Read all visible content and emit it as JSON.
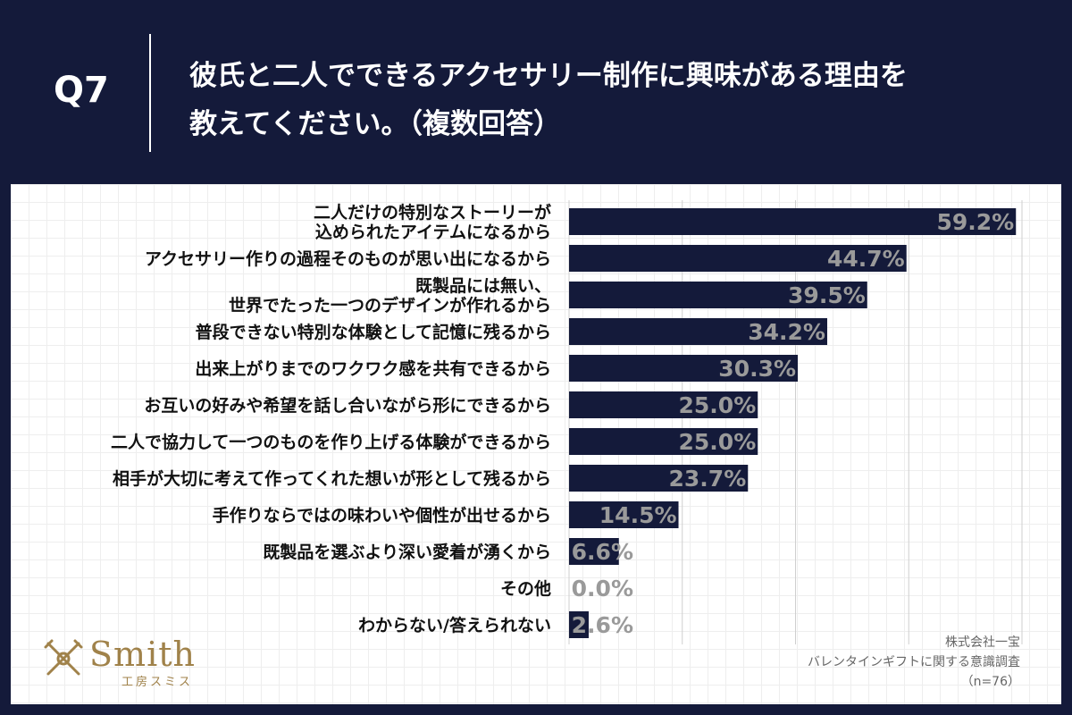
{
  "header": {
    "question_number": "Q7",
    "title_line1": "彼氏と二人でできるアクセサリー制作に興味がある理由を",
    "title_line2": "教えてください。（複数回答）"
  },
  "chart_data": {
    "type": "bar",
    "orientation": "horizontal",
    "title": "彼氏と二人でできるアクセサリー制作に興味がある理由を教えてください。（複数回答）",
    "categories": [
      [
        "二人だけの特別なストーリーが",
        "込められたアイテムになるから"
      ],
      [
        "アクセサリー作りの過程そのものが思い出になるから"
      ],
      [
        "既製品には無い、",
        "世界でたった一つのデザインが作れるから"
      ],
      [
        "普段できない特別な体験として記憶に残るから"
      ],
      [
        "出来上がりまでのワクワク感を共有できるから"
      ],
      [
        "お互いの好みや希望を話し合いながら形にできるから"
      ],
      [
        "二人で協力して一つのものを作り上げる体験ができるから"
      ],
      [
        "相手が大切に考えて作ってくれた想いが形として残るから"
      ],
      [
        "手作りならではの味わいや個性が出せるから"
      ],
      [
        "既製品を選ぶより深い愛着が湧くから"
      ],
      [
        "その他"
      ],
      [
        "わからない/答えられない"
      ]
    ],
    "values": [
      59.2,
      44.7,
      39.5,
      34.2,
      30.3,
      25.0,
      25.0,
      23.7,
      14.5,
      6.6,
      0.0,
      2.6
    ],
    "value_labels": [
      "59.2%",
      "44.7%",
      "39.5%",
      "34.2%",
      "30.3%",
      "25.0%",
      "25.0%",
      "23.7%",
      "14.5%",
      "6.6%",
      "0.0%",
      "2.6%"
    ],
    "xlim": [
      0,
      60
    ],
    "grid": true,
    "bar_color": "#141a3a",
    "label_color": "#9a9a9a"
  },
  "logo": {
    "name": "Smith",
    "subtitle": "工房スミス"
  },
  "source": {
    "company": "株式会社一宝",
    "survey": "バレンタインギフトに関する意識調査",
    "sample": "（n=76）"
  }
}
